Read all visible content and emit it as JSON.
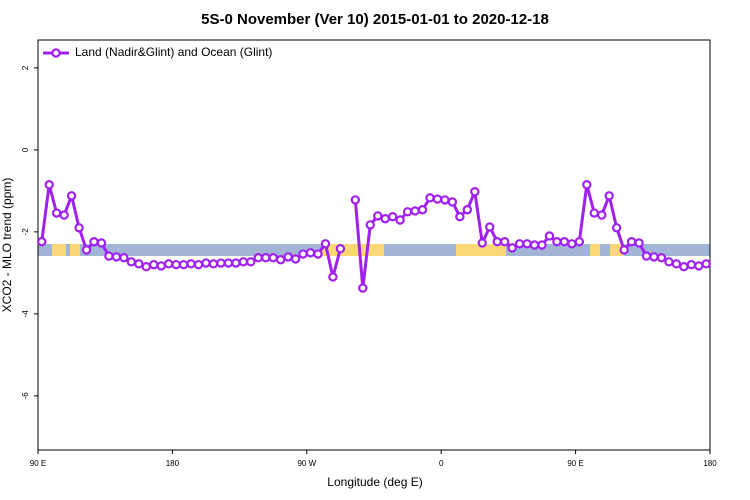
{
  "chart_data": {
    "type": "line",
    "title": "5S-0 November (Ver 10)   2015-01-01 to 2020-12-18",
    "x_label": "Longitude (deg E)",
    "y_label": "XCO2 - MLO trend (ppm)",
    "x": [
      92.5,
      97.5,
      102.5,
      107.5,
      112.5,
      117.5,
      122.5,
      127.5,
      132.5,
      137.5,
      142.5,
      147.5,
      152.5,
      157.5,
      162.5,
      167.5,
      172.5,
      177.5,
      182.5,
      187.5,
      192.5,
      197.5,
      202.5,
      207.5,
      212.5,
      217.5,
      222.5,
      227.5,
      232.5,
      237.5,
      242.5,
      247.5,
      252.5,
      257.5,
      262.5,
      267.5,
      272.5,
      277.5,
      282.5,
      287.5,
      292.5,
      297.5,
      302.5,
      307.5,
      312.5,
      317.5,
      322.5,
      327.5,
      332.5,
      337.5,
      342.5,
      347.5,
      352.5,
      357.5,
      362.5,
      367.5,
      372.5,
      377.5,
      382.5,
      387.5,
      392.5,
      397.5,
      402.5,
      407.5,
      412.5,
      417.5,
      422.5,
      427.5,
      432.5,
      437.5,
      442.5,
      447.5,
      452.5,
      457.5,
      462.5,
      467.5,
      472.5,
      477.5,
      482.5,
      487.5,
      492.5,
      497.5,
      502.5,
      507.5,
      512.5,
      517.5,
      522.5,
      527.5,
      532.5,
      537.5
    ],
    "series": [
      {
        "name": "Land (Nadir&Glint) and Ocean (Glint)",
        "color": "#a020f0",
        "values": [
          -2.24,
          -0.85,
          -1.54,
          -1.59,
          -1.12,
          -1.9,
          -2.44,
          -2.24,
          -2.27,
          -2.59,
          -2.61,
          -2.63,
          -2.73,
          -2.78,
          -2.85,
          -2.8,
          -2.83,
          -2.78,
          -2.8,
          -2.8,
          -2.78,
          -2.8,
          -2.76,
          -2.78,
          -2.76,
          -2.76,
          -2.76,
          -2.73,
          -2.73,
          -2.63,
          -2.63,
          -2.63,
          -2.68,
          -2.61,
          -2.66,
          -2.54,
          -2.51,
          -2.54,
          -2.29,
          -3.1,
          -2.41,
          null,
          -1.22,
          -3.37,
          -1.83,
          -1.61,
          -1.68,
          -1.63,
          -1.71,
          -1.51,
          -1.49,
          -1.46,
          -1.17,
          -1.2,
          -1.22,
          -1.27,
          -1.63,
          -1.46,
          -1.02,
          -2.27,
          -1.88,
          -2.24,
          -2.24,
          -2.39,
          -2.29,
          -2.29,
          -2.32,
          -2.32,
          -2.1,
          -2.24,
          -2.24,
          -2.29,
          -2.24,
          -0.85,
          -1.54,
          -1.59,
          -1.12,
          -1.9,
          -2.44,
          -2.24,
          -2.27,
          -2.59,
          -2.61,
          -2.63,
          -2.73,
          -2.78,
          -2.85,
          -2.8,
          -2.83,
          -2.78
        ]
      }
    ],
    "xlim": [
      90,
      540
    ],
    "xticks": [
      {
        "value": 90,
        "label": "90 E"
      },
      180,
      {
        "value": 270,
        "label": "90 W"
      },
      {
        "value": 360,
        "label": "0"
      },
      {
        "value": 450,
        "label": "90 E"
      },
      {
        "value": 540,
        "label": "180"
      }
    ],
    "ylim": [
      -7.32,
      2.68
    ],
    "yticks": [
      2,
      0,
      -2,
      -4,
      -6
    ],
    "grid": false,
    "legend": "top-left"
  }
}
